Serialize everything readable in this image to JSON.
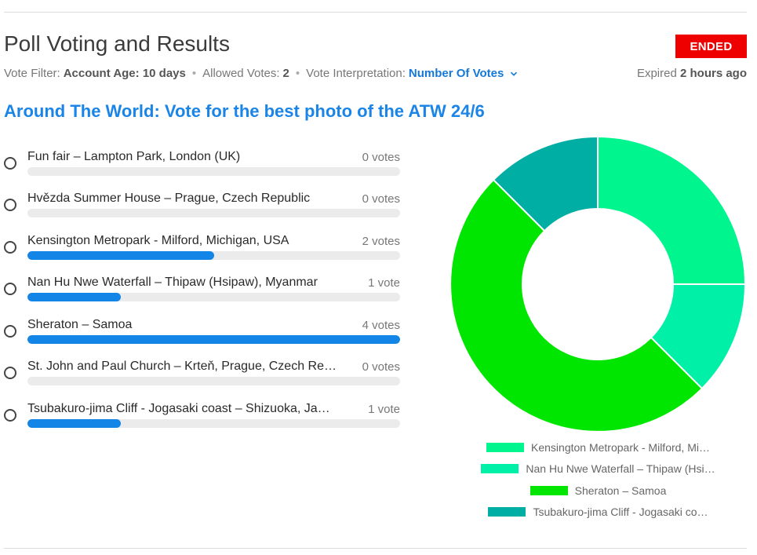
{
  "header": {
    "title": "Poll Voting and Results",
    "status_badge": "ENDED",
    "vote_filter_label": "Vote Filter:",
    "vote_filter_value": "Account Age: 10 days",
    "allowed_votes_label": "Allowed Votes:",
    "allowed_votes_value": "2",
    "interpretation_label": "Vote Interpretation:",
    "interpretation_value": "Number Of Votes",
    "expired_label": "Expired",
    "expired_value": "2 hours ago"
  },
  "poll": {
    "title": "Around The World: Vote for the best photo of the ATW 24/6",
    "max_votes": 4,
    "options": [
      {
        "label": "Fun fair – Lampton Park, London (UK)",
        "votes": 0,
        "votes_text": "0 votes"
      },
      {
        "label": "Hvězda Summer House – Prague, Czech Republic",
        "votes": 0,
        "votes_text": "0 votes"
      },
      {
        "label": "Kensington Metropark - Milford, Michigan, USA",
        "votes": 2,
        "votes_text": "2 votes"
      },
      {
        "label": "Nan Hu Nwe Waterfall – Thipaw (Hsipaw), Myanmar",
        "votes": 1,
        "votes_text": "1 vote"
      },
      {
        "label": "Sheraton – Samoa",
        "votes": 4,
        "votes_text": "4 votes"
      },
      {
        "label": "St. John and Paul Church – Krteň, Prague, Czech Re…",
        "votes": 0,
        "votes_text": "0 votes"
      },
      {
        "label": "Tsubakuro-jima Cliff - Jogasaki coast – Shizuoka, Ja…",
        "votes": 1,
        "votes_text": "1 vote"
      }
    ]
  },
  "colors": {
    "accent": "#1b84e7",
    "bar_fill": "#1285e6",
    "badge": "#ee0000"
  },
  "chart_data": {
    "type": "pie",
    "donut": true,
    "legend_position": "bottom",
    "categories": [
      "Kensington Metropark - Milford, Mi…",
      "Nan Hu Nwe Waterfall – Thipaw (Hsi…",
      "Sheraton – Samoa",
      "Tsubakuro-jima Cliff - Jogasaki co…"
    ],
    "values": [
      2,
      1,
      4,
      1
    ],
    "colors": [
      "#00f58f",
      "#00f0a8",
      "#00e600",
      "#00aea3"
    ]
  }
}
